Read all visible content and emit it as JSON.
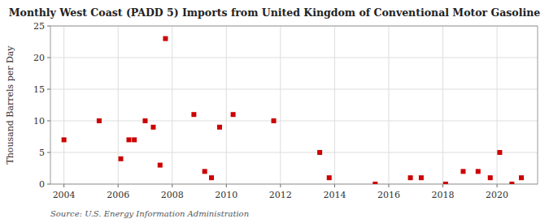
{
  "chart_data": {
    "type": "scatter",
    "title": "Monthly West Coast (PADD 5) Imports from United Kingdom of Conventional Motor Gasoline",
    "ylabel": "Thousand Barrels per Day",
    "source": "Source: U.S. Energy Information Administration",
    "x": [
      2004.0,
      2005.3,
      2006.1,
      2006.4,
      2006.6,
      2007.0,
      2007.3,
      2007.55,
      2007.75,
      2008.8,
      2009.2,
      2009.45,
      2009.75,
      2010.25,
      2011.75,
      2013.45,
      2013.8,
      2015.5,
      2016.8,
      2017.2,
      2018.1,
      2018.75,
      2019.3,
      2019.75,
      2020.1,
      2020.55,
      2020.9
    ],
    "values": [
      7,
      10,
      4,
      7,
      7,
      10,
      9,
      3,
      23,
      11,
      2,
      1,
      9,
      11,
      10,
      5,
      1,
      0,
      1,
      1,
      0,
      2,
      2,
      1,
      5,
      0,
      1
    ],
    "color": "#cc0000",
    "marker": "square",
    "xlim": [
      2003.5,
      2021.5
    ],
    "ylim": [
      0,
      25
    ],
    "xticks": [
      2004,
      2006,
      2008,
      2010,
      2012,
      2014,
      2016,
      2018,
      2020
    ],
    "yticks": [
      0,
      5,
      10,
      15,
      20,
      25
    ],
    "grid": true
  }
}
